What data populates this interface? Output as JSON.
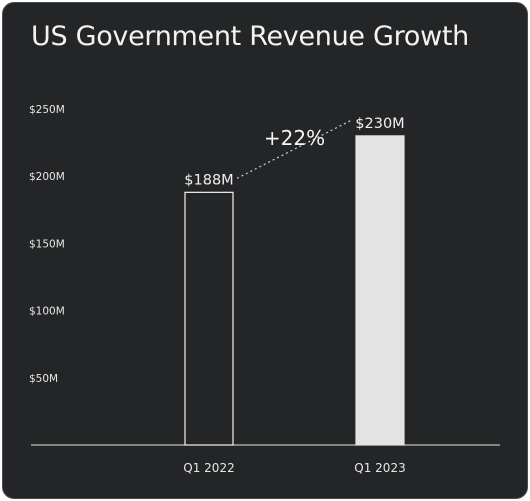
{
  "chart_data": {
    "type": "bar",
    "title": "US Government Revenue Growth",
    "categories": [
      "Q1 2022",
      "Q1 2023"
    ],
    "values": [
      188,
      230
    ],
    "value_labels": [
      "$188M",
      "$230M"
    ],
    "ylim": [
      0,
      250
    ],
    "y_ticks": [
      50,
      100,
      150,
      200,
      250
    ],
    "y_tick_labels": [
      "$50M",
      "$100M",
      "$150M",
      "$200M",
      "$250M"
    ],
    "grid": false,
    "annotation": "+22%",
    "bar_styles": [
      {
        "fill": "none",
        "stroke": "#f2f2f2"
      },
      {
        "fill": "#e3e3e3",
        "stroke": "#e3e3e3"
      }
    ]
  }
}
